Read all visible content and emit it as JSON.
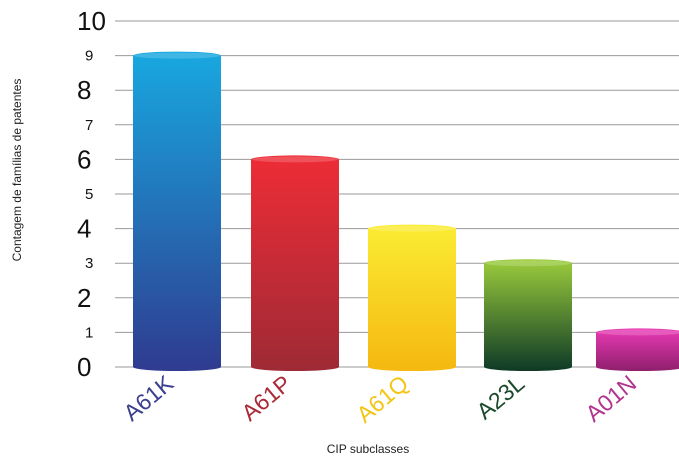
{
  "chart_data": {
    "type": "bar",
    "title": "",
    "xlabel": "CIP subclasses",
    "ylabel": "Contagem de famílias de patentes",
    "categories": [
      "A61K",
      "A61P",
      "A61Q",
      "A23L",
      "A01N"
    ],
    "values": [
      9,
      6,
      4,
      3,
      1
    ],
    "ylim": [
      0,
      10
    ],
    "yticks": [
      0,
      1,
      2,
      3,
      4,
      5,
      6,
      7,
      8,
      9,
      10
    ],
    "grid": true,
    "legend": "none",
    "bar_gradients": [
      [
        "#18a8e0",
        "#2f3b8f"
      ],
      [
        "#ee2c36",
        "#9e2a35"
      ],
      [
        "#fbec33",
        "#f5b810"
      ],
      [
        "#9ccd3c",
        "#0e3a26"
      ],
      [
        "#ea3ab5",
        "#8e1f6c"
      ]
    ],
    "label_colors": [
      "#3a3f8f",
      "#a92a36",
      "#f3c515",
      "#1b4a2b",
      "#b1348f"
    ]
  }
}
